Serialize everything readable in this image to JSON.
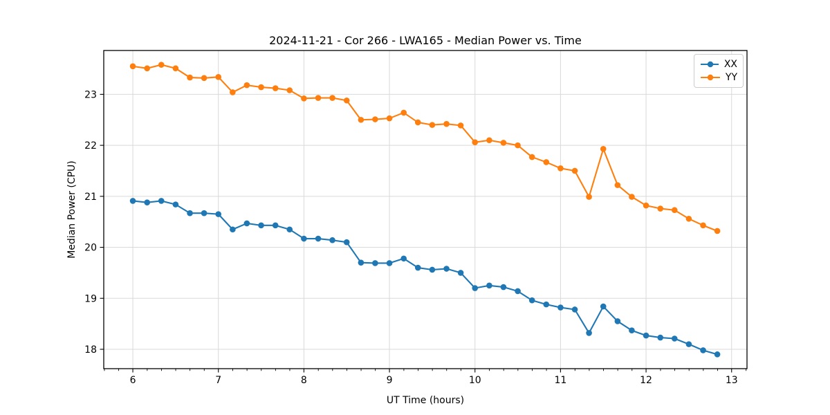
{
  "figure": {
    "background": "#ffffff",
    "frame_color": "#000000",
    "grid_color": "#d9d9d9"
  },
  "legend": {
    "position": "upper right",
    "entries": [
      "XX",
      "YY"
    ]
  },
  "chart_data": {
    "type": "line",
    "title": "2024-11-21 - Cor 266 - LWA165 - Median Power vs. Time",
    "xlabel": "UT Time (hours)",
    "ylabel": "Median Power (CPU)",
    "xlim": [
      5.66,
      13.18
    ],
    "ylim": [
      17.62,
      23.86
    ],
    "x_major_ticks": [
      6,
      7,
      8,
      9,
      10,
      11,
      12,
      13
    ],
    "x_minor_step": 0.1667,
    "y_major_ticks": [
      18,
      19,
      20,
      21,
      22,
      23
    ],
    "grid": true,
    "legend_position": "upper right",
    "marker": "circle",
    "x": [
      6.0,
      6.167,
      6.333,
      6.5,
      6.667,
      6.833,
      7.0,
      7.167,
      7.333,
      7.5,
      7.667,
      7.833,
      8.0,
      8.167,
      8.333,
      8.5,
      8.667,
      8.833,
      9.0,
      9.167,
      9.333,
      9.5,
      9.667,
      9.833,
      10.0,
      10.167,
      10.333,
      10.5,
      10.667,
      10.833,
      11.0,
      11.167,
      11.333,
      11.5,
      11.667,
      11.833,
      12.0,
      12.167,
      12.333,
      12.5,
      12.667,
      12.833
    ],
    "series": [
      {
        "name": "XX",
        "color": "#1f77b4",
        "values": [
          20.91,
          20.88,
          20.91,
          20.84,
          20.67,
          20.67,
          20.65,
          20.35,
          20.47,
          20.43,
          20.43,
          20.35,
          20.17,
          20.17,
          20.14,
          20.1,
          19.7,
          19.69,
          19.69,
          19.78,
          19.6,
          19.56,
          19.58,
          19.5,
          19.2,
          19.25,
          19.22,
          19.14,
          18.96,
          18.88,
          18.82,
          18.78,
          18.32,
          18.84,
          18.55,
          18.37,
          18.27,
          18.23,
          18.21,
          18.1,
          17.98,
          17.9
        ]
      },
      {
        "name": "YY",
        "color": "#ff7f0e",
        "values": [
          23.55,
          23.51,
          23.58,
          23.51,
          23.33,
          23.32,
          23.34,
          23.04,
          23.18,
          23.14,
          23.12,
          23.08,
          22.92,
          22.93,
          22.93,
          22.88,
          22.5,
          22.51,
          22.53,
          22.64,
          22.45,
          22.4,
          22.42,
          22.39,
          22.06,
          22.1,
          22.05,
          22.0,
          21.77,
          21.67,
          21.55,
          21.5,
          20.99,
          21.93,
          21.22,
          20.99,
          20.82,
          20.76,
          20.73,
          20.56,
          20.43,
          20.32
        ]
      }
    ]
  }
}
